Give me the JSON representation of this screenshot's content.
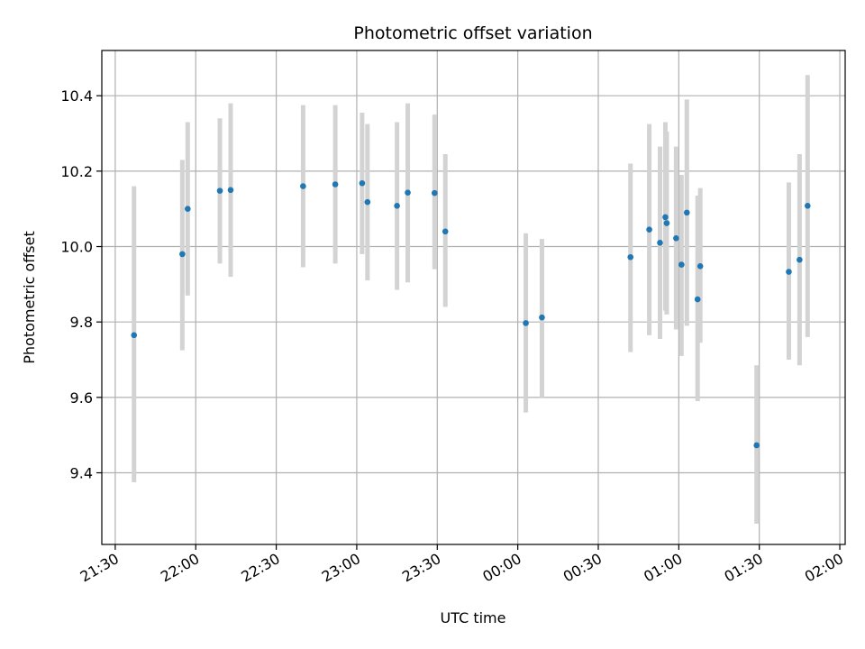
{
  "chart_data": {
    "type": "scatter",
    "title": "Photometric offset variation",
    "xlabel": "UTC time",
    "ylabel": "Photometric offset",
    "x_axis_type": "time",
    "xlim": [
      "21:25",
      "02:02"
    ],
    "ylim": [
      9.21,
      10.52
    ],
    "xticks": [
      "21:30",
      "22:00",
      "22:30",
      "23:00",
      "23:30",
      "00:00",
      "00:30",
      "01:00",
      "01:30",
      "02:00"
    ],
    "yticks": [
      9.4,
      9.6,
      9.8,
      10.0,
      10.2,
      10.4
    ],
    "grid": true,
    "point_color": "#1f77b4",
    "errorbar_color": "#d3d3d3",
    "points": [
      {
        "t": "21:37",
        "y": 9.765,
        "lo": 9.375,
        "hi": 10.16
      },
      {
        "t": "21:55",
        "y": 9.98,
        "lo": 9.725,
        "hi": 10.23
      },
      {
        "t": "21:57",
        "y": 10.1,
        "lo": 9.87,
        "hi": 10.33
      },
      {
        "t": "22:09",
        "y": 10.148,
        "lo": 9.955,
        "hi": 10.34
      },
      {
        "t": "22:13",
        "y": 10.15,
        "lo": 9.92,
        "hi": 10.38
      },
      {
        "t": "22:40",
        "y": 10.16,
        "lo": 9.945,
        "hi": 10.375
      },
      {
        "t": "22:52",
        "y": 10.165,
        "lo": 9.955,
        "hi": 10.375
      },
      {
        "t": "23:02",
        "y": 10.168,
        "lo": 9.98,
        "hi": 10.355
      },
      {
        "t": "23:04",
        "y": 10.118,
        "lo": 9.91,
        "hi": 10.325
      },
      {
        "t": "23:15",
        "y": 10.108,
        "lo": 9.885,
        "hi": 10.33
      },
      {
        "t": "23:19",
        "y": 10.143,
        "lo": 9.905,
        "hi": 10.38
      },
      {
        "t": "23:29",
        "y": 10.142,
        "lo": 9.94,
        "hi": 10.35
      },
      {
        "t": "23:33",
        "y": 10.04,
        "lo": 9.84,
        "hi": 10.245
      },
      {
        "t": "00:03",
        "y": 9.797,
        "lo": 9.56,
        "hi": 10.035
      },
      {
        "t": "00:09",
        "y": 9.812,
        "lo": 9.6,
        "hi": 10.02
      },
      {
        "t": "00:42",
        "y": 9.972,
        "lo": 9.72,
        "hi": 10.22
      },
      {
        "t": "00:49",
        "y": 10.045,
        "lo": 9.765,
        "hi": 10.325
      },
      {
        "t": "00:53",
        "y": 10.01,
        "lo": 9.755,
        "hi": 10.265
      },
      {
        "t": "00:55",
        "y": 10.078,
        "lo": 9.83,
        "hi": 10.33
      },
      {
        "t": "00:55:30",
        "y": 10.062,
        "lo": 9.82,
        "hi": 10.305
      },
      {
        "t": "00:59",
        "y": 10.022,
        "lo": 9.78,
        "hi": 10.265
      },
      {
        "t": "01:01",
        "y": 9.952,
        "lo": 9.71,
        "hi": 10.19
      },
      {
        "t": "01:03",
        "y": 10.09,
        "lo": 9.79,
        "hi": 10.39
      },
      {
        "t": "01:07",
        "y": 9.86,
        "lo": 9.59,
        "hi": 10.135
      },
      {
        "t": "01:08",
        "y": 9.948,
        "lo": 9.745,
        "hi": 10.155
      },
      {
        "t": "01:29",
        "y": 9.473,
        "lo": 9.265,
        "hi": 9.685
      },
      {
        "t": "01:41",
        "y": 9.933,
        "lo": 9.7,
        "hi": 10.17
      },
      {
        "t": "01:45",
        "y": 9.965,
        "lo": 9.685,
        "hi": 10.245
      },
      {
        "t": "01:48",
        "y": 10.108,
        "lo": 9.76,
        "hi": 10.455
      }
    ]
  }
}
